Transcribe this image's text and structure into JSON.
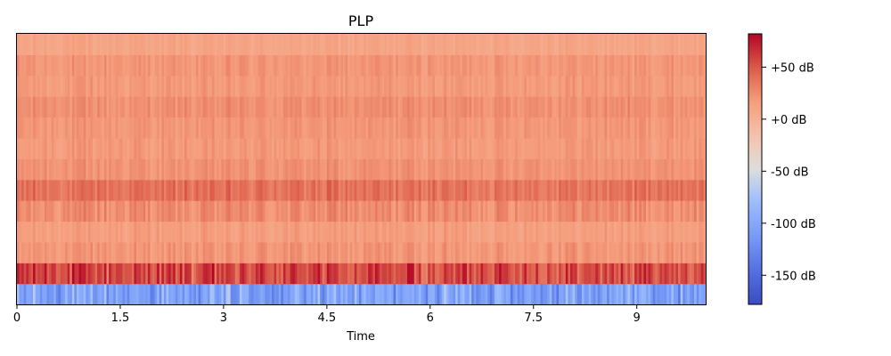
{
  "chart_data": {
    "type": "heatmap",
    "title": "PLP",
    "xlabel": "Time",
    "ylabel": "",
    "x_range": [
      0,
      10
    ],
    "x_ticks": [
      0,
      1.5,
      3,
      4.5,
      6,
      7.5,
      9
    ],
    "x_tick_labels": [
      "0",
      "1.5",
      "3",
      "4.5",
      "6",
      "7.5",
      "9"
    ],
    "n_rows": 13,
    "n_frames": 300,
    "row_mean_db": [
      -105,
      55,
      20,
      15,
      25,
      38,
      22,
      18,
      20,
      24,
      18,
      20,
      10
    ],
    "row_spread_db": [
      35,
      25,
      10,
      8,
      12,
      12,
      8,
      8,
      8,
      8,
      8,
      8,
      6
    ],
    "colorbar": {
      "min_db": -178,
      "max_db": 82,
      "ticks": [
        50,
        0,
        -50,
        -100,
        -150
      ],
      "tick_labels": [
        "+50 dB",
        "+0 dB",
        "-50 dB",
        "-100 dB",
        "-150 dB"
      ],
      "colormap": "coolwarm",
      "colors": {
        "low": "#3b4cc0",
        "mid": "#dddddd",
        "high": "#b40426"
      }
    }
  }
}
